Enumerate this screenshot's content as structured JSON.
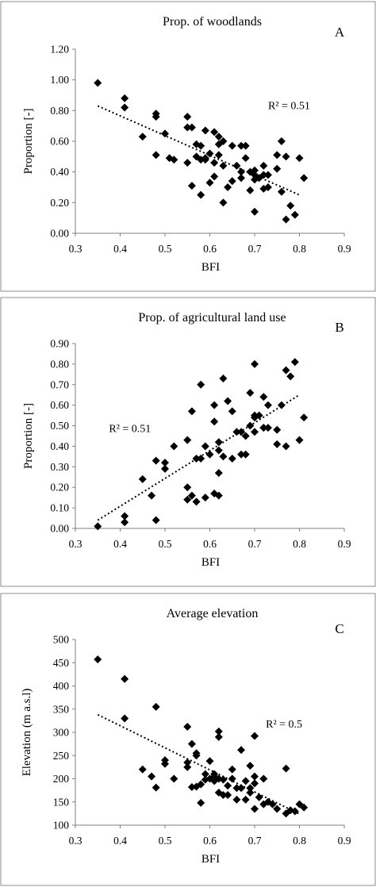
{
  "chart_data": [
    {
      "type": "scatter",
      "panel_letter": "A",
      "title": "Prop. of woodlands",
      "xlabel": "BFI",
      "ylabel": "Proportion [-]",
      "xlim": [
        0.3,
        0.9
      ],
      "ylim": [
        0.0,
        1.2
      ],
      "xticks": [
        "0.3",
        "0.4",
        "0.5",
        "0.6",
        "0.7",
        "0.8",
        "0.9"
      ],
      "yticks": [
        "0.00",
        "0.20",
        "0.40",
        "0.60",
        "0.80",
        "1.00",
        "1.20"
      ],
      "trendline": {
        "style": "dotted",
        "from": [
          0.35,
          0.83
        ],
        "to": [
          0.8,
          0.25
        ]
      },
      "annotation": "R² = 0.51",
      "annotation_pos": [
        0.73,
        0.81
      ],
      "points": [
        [
          0.35,
          0.98
        ],
        [
          0.41,
          0.88
        ],
        [
          0.41,
          0.82
        ],
        [
          0.45,
          0.63
        ],
        [
          0.48,
          0.78
        ],
        [
          0.48,
          0.76
        ],
        [
          0.48,
          0.51
        ],
        [
          0.5,
          0.65
        ],
        [
          0.51,
          0.49
        ],
        [
          0.52,
          0.48
        ],
        [
          0.55,
          0.76
        ],
        [
          0.55,
          0.69
        ],
        [
          0.55,
          0.46
        ],
        [
          0.56,
          0.69
        ],
        [
          0.56,
          0.31
        ],
        [
          0.57,
          0.5
        ],
        [
          0.57,
          0.58
        ],
        [
          0.58,
          0.57
        ],
        [
          0.58,
          0.25
        ],
        [
          0.58,
          0.48
        ],
        [
          0.59,
          0.67
        ],
        [
          0.59,
          0.49
        ],
        [
          0.59,
          0.48
        ],
        [
          0.6,
          0.52
        ],
        [
          0.6,
          0.33
        ],
        [
          0.61,
          0.66
        ],
        [
          0.61,
          0.37
        ],
        [
          0.61,
          0.46
        ],
        [
          0.62,
          0.63
        ],
        [
          0.62,
          0.51
        ],
        [
          0.62,
          0.58
        ],
        [
          0.63,
          0.6
        ],
        [
          0.63,
          0.44
        ],
        [
          0.63,
          0.2
        ],
        [
          0.64,
          0.3
        ],
        [
          0.65,
          0.57
        ],
        [
          0.65,
          0.34
        ],
        [
          0.66,
          0.44
        ],
        [
          0.67,
          0.57
        ],
        [
          0.67,
          0.4
        ],
        [
          0.67,
          0.36
        ],
        [
          0.68,
          0.57
        ],
        [
          0.68,
          0.49
        ],
        [
          0.69,
          0.4
        ],
        [
          0.69,
          0.28
        ],
        [
          0.7,
          0.41
        ],
        [
          0.7,
          0.38
        ],
        [
          0.7,
          0.35
        ],
        [
          0.7,
          0.14
        ],
        [
          0.71,
          0.36
        ],
        [
          0.72,
          0.44
        ],
        [
          0.72,
          0.38
        ],
        [
          0.72,
          0.29
        ],
        [
          0.73,
          0.38
        ],
        [
          0.73,
          0.3
        ],
        [
          0.75,
          0.51
        ],
        [
          0.75,
          0.42
        ],
        [
          0.76,
          0.6
        ],
        [
          0.76,
          0.27
        ],
        [
          0.77,
          0.5
        ],
        [
          0.77,
          0.09
        ],
        [
          0.78,
          0.18
        ],
        [
          0.79,
          0.12
        ],
        [
          0.8,
          0.49
        ],
        [
          0.81,
          0.36
        ]
      ]
    },
    {
      "type": "scatter",
      "panel_letter": "B",
      "title": "Prop. of agricultural land use",
      "xlabel": "BFI",
      "ylabel": "Proportion [-]",
      "xlim": [
        0.3,
        0.9
      ],
      "ylim": [
        0.0,
        0.9
      ],
      "xticks": [
        "0.3",
        "0.4",
        "0.5",
        "0.6",
        "0.7",
        "0.8",
        "0.9"
      ],
      "yticks": [
        "0.00",
        "0.10",
        "0.20",
        "0.30",
        "0.40",
        "0.50",
        "0.60",
        "0.70",
        "0.80",
        "0.90"
      ],
      "trendline": {
        "style": "dotted",
        "from": [
          0.35,
          0.04
        ],
        "to": [
          0.8,
          0.65
        ]
      },
      "annotation": "R² = 0.51",
      "annotation_pos": [
        0.375,
        0.47
      ],
      "points": [
        [
          0.35,
          0.01
        ],
        [
          0.41,
          0.06
        ],
        [
          0.41,
          0.03
        ],
        [
          0.45,
          0.24
        ],
        [
          0.47,
          0.16
        ],
        [
          0.48,
          0.33
        ],
        [
          0.48,
          0.04
        ],
        [
          0.5,
          0.32
        ],
        [
          0.5,
          0.29
        ],
        [
          0.52,
          0.4
        ],
        [
          0.55,
          0.43
        ],
        [
          0.55,
          0.2
        ],
        [
          0.55,
          0.14
        ],
        [
          0.56,
          0.57
        ],
        [
          0.56,
          0.16
        ],
        [
          0.57,
          0.34
        ],
        [
          0.57,
          0.13
        ],
        [
          0.58,
          0.7
        ],
        [
          0.58,
          0.34
        ],
        [
          0.59,
          0.4
        ],
        [
          0.59,
          0.15
        ],
        [
          0.6,
          0.36
        ],
        [
          0.61,
          0.6
        ],
        [
          0.61,
          0.52
        ],
        [
          0.61,
          0.17
        ],
        [
          0.62,
          0.42
        ],
        [
          0.62,
          0.38
        ],
        [
          0.62,
          0.27
        ],
        [
          0.62,
          0.16
        ],
        [
          0.63,
          0.73
        ],
        [
          0.63,
          0.35
        ],
        [
          0.64,
          0.62
        ],
        [
          0.65,
          0.57
        ],
        [
          0.65,
          0.34
        ],
        [
          0.66,
          0.47
        ],
        [
          0.67,
          0.47
        ],
        [
          0.67,
          0.36
        ],
        [
          0.68,
          0.45
        ],
        [
          0.68,
          0.36
        ],
        [
          0.69,
          0.66
        ],
        [
          0.69,
          0.5
        ],
        [
          0.7,
          0.8
        ],
        [
          0.7,
          0.55
        ],
        [
          0.7,
          0.54
        ],
        [
          0.7,
          0.47
        ],
        [
          0.71,
          0.55
        ],
        [
          0.72,
          0.64
        ],
        [
          0.72,
          0.49
        ],
        [
          0.72,
          0.49
        ],
        [
          0.73,
          0.6
        ],
        [
          0.73,
          0.49
        ],
        [
          0.75,
          0.48
        ],
        [
          0.75,
          0.41
        ],
        [
          0.76,
          0.6
        ],
        [
          0.77,
          0.77
        ],
        [
          0.77,
          0.4
        ],
        [
          0.78,
          0.74
        ],
        [
          0.79,
          0.81
        ],
        [
          0.8,
          0.43
        ],
        [
          0.81,
          0.54
        ]
      ]
    },
    {
      "type": "scatter",
      "panel_letter": "C",
      "title": "Average elevation",
      "xlabel": "BFI",
      "ylabel": "Elevation (m a.s.l)",
      "xlim": [
        0.3,
        0.9
      ],
      "ylim": [
        100,
        500
      ],
      "xticks": [
        "0.3",
        "0.4",
        "0.5",
        "0.6",
        "0.7",
        "0.8",
        "0.9"
      ],
      "yticks": [
        "100",
        "150",
        "200",
        "250",
        "300",
        "350",
        "400",
        "450",
        "500"
      ],
      "trendline": {
        "style": "dotted",
        "from": [
          0.35,
          338
        ],
        "to": [
          0.8,
          124
        ]
      },
      "annotation": "R² = 0.5",
      "annotation_pos": [
        0.725,
        310
      ],
      "points": [
        [
          0.35,
          457
        ],
        [
          0.41,
          415
        ],
        [
          0.41,
          330
        ],
        [
          0.45,
          220
        ],
        [
          0.47,
          205
        ],
        [
          0.48,
          355
        ],
        [
          0.48,
          181
        ],
        [
          0.5,
          240
        ],
        [
          0.5,
          232
        ],
        [
          0.52,
          200
        ],
        [
          0.55,
          312
        ],
        [
          0.55,
          235
        ],
        [
          0.55,
          225
        ],
        [
          0.56,
          275
        ],
        [
          0.56,
          182
        ],
        [
          0.57,
          255
        ],
        [
          0.57,
          250
        ],
        [
          0.57,
          183
        ],
        [
          0.58,
          188
        ],
        [
          0.58,
          148
        ],
        [
          0.59,
          210
        ],
        [
          0.59,
          198
        ],
        [
          0.6,
          238
        ],
        [
          0.6,
          200
        ],
        [
          0.61,
          210
        ],
        [
          0.61,
          195
        ],
        [
          0.61,
          205
        ],
        [
          0.62,
          302
        ],
        [
          0.62,
          290
        ],
        [
          0.62,
          200
        ],
        [
          0.62,
          170
        ],
        [
          0.63,
          198
        ],
        [
          0.63,
          165
        ],
        [
          0.64,
          185
        ],
        [
          0.64,
          165
        ],
        [
          0.65,
          220
        ],
        [
          0.65,
          200
        ],
        [
          0.66,
          155
        ],
        [
          0.66,
          180
        ],
        [
          0.67,
          262
        ],
        [
          0.67,
          180
        ],
        [
          0.68,
          155
        ],
        [
          0.68,
          195
        ],
        [
          0.69,
          228
        ],
        [
          0.69,
          180
        ],
        [
          0.69,
          170
        ],
        [
          0.7,
          292
        ],
        [
          0.7,
          205
        ],
        [
          0.7,
          190
        ],
        [
          0.7,
          135
        ],
        [
          0.71,
          160
        ],
        [
          0.72,
          200
        ],
        [
          0.72,
          145
        ],
        [
          0.73,
          150
        ],
        [
          0.74,
          145
        ],
        [
          0.75,
          135
        ],
        [
          0.77,
          222
        ],
        [
          0.77,
          125
        ],
        [
          0.78,
          132
        ],
        [
          0.79,
          130
        ],
        [
          0.8,
          145
        ],
        [
          0.81,
          138
        ]
      ]
    }
  ]
}
